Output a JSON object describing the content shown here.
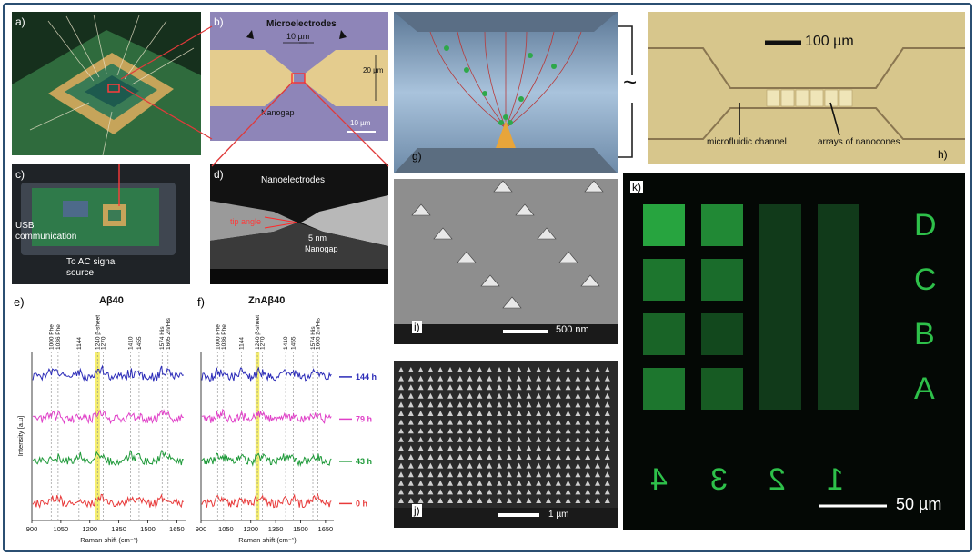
{
  "panels": {
    "a": {
      "label": "a)"
    },
    "b": {
      "label": "b)",
      "microelectrodes": "Microelectrodes",
      "gap_width": "10 µm",
      "height": "20 µm",
      "nanogap": "Nanogap",
      "scale": "10 µm"
    },
    "c": {
      "label": "c)",
      "usb": "USB",
      "communication": "communication",
      "ac_line1": "To AC signal",
      "ac_line2": "source"
    },
    "d": {
      "label": "d)",
      "nanoelectrodes": "Nanoelectrodes",
      "tip_angle": "tip angle",
      "gap_size": "5 nm",
      "nanogap": "Nanogap"
    },
    "g": {
      "label": "g)",
      "ac_symbol": "~"
    },
    "h": {
      "label": "h)",
      "scale": "100 µm",
      "channel": "microfluidic channel",
      "nanocones": "arrays of nanocones"
    },
    "i": {
      "label": "i)",
      "scale": "500 nm"
    },
    "j": {
      "label": "j)",
      "scale": "1 µm"
    },
    "k": {
      "label": "k)",
      "scale": "50 µm",
      "letters": [
        "D",
        "C",
        "B",
        "A"
      ],
      "digits": [
        "4",
        "3",
        "2",
        "1"
      ]
    }
  },
  "raman": {
    "e": {
      "label": "e)",
      "title": "Aβ40",
      "peaks": [
        {
          "label": "1000 Phe",
          "x": 1000
        },
        {
          "label": "1036 Phe",
          "x": 1036
        },
        {
          "label": "1144",
          "x": 1144
        },
        {
          "label": "1240 β-sheet",
          "x": 1240
        },
        {
          "label": "1270",
          "x": 1270
        },
        {
          "label": "1410",
          "x": 1410
        },
        {
          "label": "1455",
          "x": 1455
        },
        {
          "label": "1574 His",
          "x": 1574
        },
        {
          "label": "1605 Zn/His",
          "x": 1605
        }
      ]
    },
    "f": {
      "label": "f)",
      "title": "ZnAβ40",
      "peaks": [
        {
          "label": "1000 Phe",
          "x": 1000
        },
        {
          "label": "1036 Phe",
          "x": 1036
        },
        {
          "label": "1144",
          "x": 1144
        },
        {
          "label": "1240 β-sheet",
          "x": 1240
        },
        {
          "label": "1270",
          "x": 1270
        },
        {
          "label": "1410",
          "x": 1410
        },
        {
          "label": "1455",
          "x": 1455
        },
        {
          "label": "1574 His",
          "x": 1574
        },
        {
          "label": "1605 Zn/His",
          "x": 1605
        }
      ]
    },
    "xlabel": "Raman shift (cm⁻¹)",
    "ylabel": "Intensity [a.u]",
    "xticks": [
      "900",
      "1050",
      "1200",
      "1350",
      "1500",
      "1650"
    ],
    "xlim": [
      900,
      1700
    ],
    "series": [
      {
        "label": "144 h",
        "color": "#2b2bb8"
      },
      {
        "label": "79 h",
        "color": "#e040c8"
      },
      {
        "label": "43 h",
        "color": "#1f9a3a"
      },
      {
        "label": "0 h",
        "color": "#e83a3a"
      }
    ],
    "highlight_color": "#f1e94a"
  }
}
